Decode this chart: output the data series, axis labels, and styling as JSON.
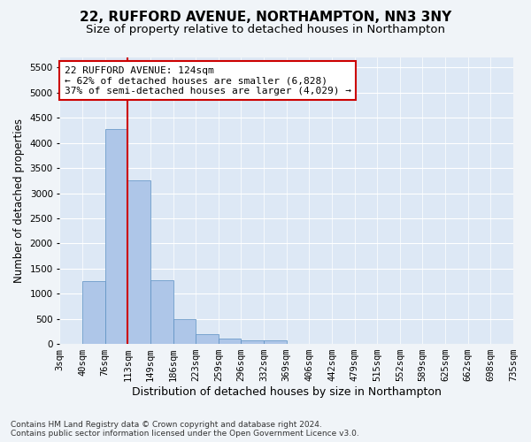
{
  "title1": "22, RUFFORD AVENUE, NORTHAMPTON, NN3 3NY",
  "title2": "Size of property relative to detached houses in Northampton",
  "xlabel": "Distribution of detached houses by size in Northampton",
  "ylabel": "Number of detached properties",
  "footnote": "Contains HM Land Registry data © Crown copyright and database right 2024.\nContains public sector information licensed under the Open Government Licence v3.0.",
  "bins": [
    "3sqm",
    "40sqm",
    "76sqm",
    "113sqm",
    "149sqm",
    "186sqm",
    "223sqm",
    "259sqm",
    "296sqm",
    "332sqm",
    "369sqm",
    "406sqm",
    "442sqm",
    "479sqm",
    "515sqm",
    "552sqm",
    "589sqm",
    "625sqm",
    "662sqm",
    "698sqm",
    "735sqm"
  ],
  "bar_values": [
    0,
    1250,
    4270,
    3250,
    1270,
    500,
    200,
    100,
    80,
    75,
    0,
    0,
    0,
    0,
    0,
    0,
    0,
    0,
    0,
    0
  ],
  "bar_color": "#aec6e8",
  "bar_edge_color": "#5a8fc2",
  "ylim": [
    0,
    5700
  ],
  "yticks": [
    0,
    500,
    1000,
    1500,
    2000,
    2500,
    3000,
    3500,
    4000,
    4500,
    5000,
    5500
  ],
  "annotation_title": "22 RUFFORD AVENUE: 124sqm",
  "annotation_line1": "← 62% of detached houses are smaller (6,828)",
  "annotation_line2": "37% of semi-detached houses are larger (4,029) →",
  "annotation_box_color": "#ffffff",
  "annotation_box_edgecolor": "#cc0000",
  "red_line_color": "#cc0000",
  "bg_color": "#dde8f5",
  "grid_color": "#ffffff",
  "title1_fontsize": 11,
  "title2_fontsize": 9.5,
  "xlabel_fontsize": 9,
  "ylabel_fontsize": 8.5,
  "tick_fontsize": 7.5,
  "annot_fontsize": 8,
  "red_line_x": 2.5
}
